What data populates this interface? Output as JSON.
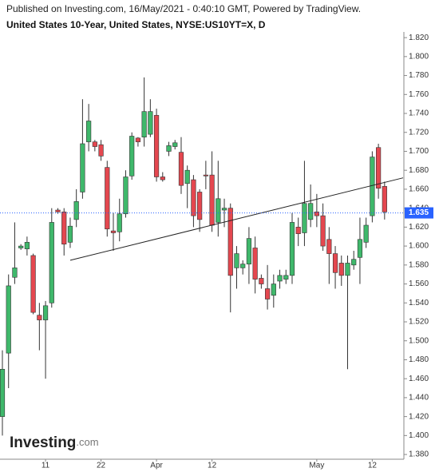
{
  "chart_data": {
    "type": "candlestick",
    "header": "Published on Investing.com, 16/May/2021 - 0:40:10 GMT, Powered by TradingView.",
    "title": "United States 10-Year, United States, NYSE:US10YT=X, D",
    "logo": {
      "name": "Investing",
      "suffix": ".com"
    },
    "categories": [
      null,
      null,
      null,
      null,
      null,
      null,
      null,
      "11",
      null,
      null,
      null,
      null,
      null,
      null,
      null,
      null,
      "22",
      null,
      null,
      null,
      null,
      null,
      null,
      null,
      null,
      "Apr",
      null,
      null,
      null,
      null,
      null,
      null,
      null,
      null,
      "12",
      null,
      null,
      null,
      null,
      null,
      null,
      null,
      null,
      null,
      null,
      null,
      null,
      null,
      null,
      null,
      null,
      "May",
      null,
      null,
      null,
      null,
      null,
      null,
      null,
      null,
      "12",
      null,
      null
    ],
    "open": [
      1.42,
      1.487,
      1.567,
      1.598,
      1.597,
      1.59,
      1.527,
      1.522,
      1.54,
      1.638,
      1.636,
      1.604,
      1.628,
      1.657,
      1.71,
      1.71,
      1.707,
      1.683,
      1.616,
      1.615,
      1.634,
      1.674,
      1.714,
      1.715,
      1.718,
      1.738,
      1.673,
      1.7,
      1.705,
      1.699,
      1.666,
      1.67,
      1.657,
      1.675,
      1.675,
      1.625,
      1.638,
      1.64,
      1.577,
      1.577,
      1.581,
      1.598,
      1.566,
      1.555,
      1.548,
      1.563,
      1.565,
      1.569,
      1.62,
      1.614,
      1.628,
      1.636,
      1.632,
      1.607,
      1.592,
      1.582,
      1.569,
      1.58,
      1.588,
      1.604,
      1.632,
      1.704,
      1.663
    ],
    "high": [
      1.49,
      1.57,
      1.625,
      1.602,
      1.61,
      1.592,
      1.54,
      1.542,
      1.64,
      1.64,
      1.64,
      1.63,
      1.66,
      1.755,
      1.75,
      1.712,
      1.712,
      1.69,
      1.635,
      1.65,
      1.68,
      1.72,
      1.715,
      1.778,
      1.755,
      1.745,
      1.678,
      1.71,
      1.712,
      1.715,
      1.685,
      1.675,
      1.66,
      1.69,
      1.7,
      1.69,
      1.65,
      1.645,
      1.6,
      1.585,
      1.62,
      1.61,
      1.57,
      1.58,
      1.57,
      1.575,
      1.575,
      1.635,
      1.63,
      1.69,
      1.665,
      1.655,
      1.645,
      1.62,
      1.6,
      1.59,
      1.59,
      1.595,
      1.63,
      1.63,
      1.7,
      1.708,
      1.668
    ],
    "low": [
      1.4,
      1.45,
      1.56,
      1.596,
      1.59,
      1.528,
      1.49,
      1.46,
      1.535,
      1.634,
      1.59,
      1.598,
      1.62,
      1.65,
      1.7,
      1.7,
      1.69,
      1.61,
      1.595,
      1.605,
      1.63,
      1.67,
      1.705,
      1.705,
      1.715,
      1.668,
      1.668,
      1.695,
      1.702,
      1.655,
      1.64,
      1.62,
      1.615,
      1.66,
      1.615,
      1.61,
      1.62,
      1.53,
      1.555,
      1.57,
      1.56,
      1.55,
      1.555,
      1.533,
      1.535,
      1.555,
      1.56,
      1.56,
      1.6,
      1.6,
      1.62,
      1.62,
      1.595,
      1.56,
      1.555,
      1.558,
      1.47,
      1.575,
      1.56,
      1.598,
      1.625,
      1.65,
      1.628
    ],
    "close": [
      1.47,
      1.558,
      1.577,
      1.6,
      1.604,
      1.53,
      1.522,
      1.537,
      1.625,
      1.636,
      1.602,
      1.621,
      1.647,
      1.708,
      1.732,
      1.705,
      1.695,
      1.618,
      1.614,
      1.634,
      1.673,
      1.716,
      1.71,
      1.742,
      1.742,
      1.673,
      1.67,
      1.706,
      1.709,
      1.664,
      1.68,
      1.632,
      1.628,
      1.674,
      1.622,
      1.65,
      1.64,
      1.569,
      1.592,
      1.581,
      1.608,
      1.565,
      1.56,
      1.544,
      1.56,
      1.569,
      1.569,
      1.625,
      1.613,
      1.645,
      1.645,
      1.632,
      1.6,
      1.592,
      1.572,
      1.569,
      1.582,
      1.586,
      1.607,
      1.622,
      1.694,
      1.661,
      1.636
    ],
    "up_color": "#3fb86b",
    "down_color": "#e4474f",
    "xlim": [
      0,
      65
    ],
    "ylim": [
      1.375,
      1.826
    ],
    "yticks": [
      {
        "value": 1.38,
        "label": "1.380"
      },
      {
        "value": 1.4,
        "label": "1.400"
      },
      {
        "value": 1.42,
        "label": "1.420"
      },
      {
        "value": 1.44,
        "label": "1.440"
      },
      {
        "value": 1.46,
        "label": "1.460"
      },
      {
        "value": 1.48,
        "label": "1.480"
      },
      {
        "value": 1.5,
        "label": "1.500"
      },
      {
        "value": 1.52,
        "label": "1.520"
      },
      {
        "value": 1.54,
        "label": "1.540"
      },
      {
        "value": 1.56,
        "label": "1.560"
      },
      {
        "value": 1.58,
        "label": "1.580"
      },
      {
        "value": 1.6,
        "label": "1.600"
      },
      {
        "value": 1.62,
        "label": "1.620"
      },
      {
        "value": 1.64,
        "label": "1.640"
      },
      {
        "value": 1.66,
        "label": "1.660"
      },
      {
        "value": 1.68,
        "label": "1.680"
      },
      {
        "value": 1.7,
        "label": "1.700"
      },
      {
        "value": 1.72,
        "label": "1.720"
      },
      {
        "value": 1.74,
        "label": "1.740"
      },
      {
        "value": 1.76,
        "label": "1.760"
      },
      {
        "value": 1.78,
        "label": "1.780"
      },
      {
        "value": 1.8,
        "label": "1.800"
      },
      {
        "value": 1.82,
        "label": "1.820"
      }
    ],
    "trendline": {
      "x": [
        11,
        65
      ],
      "y": [
        1.585,
        1.672
      ],
      "color": "#222222"
    },
    "last_value": {
      "value": 1.635,
      "color": "#2962ff"
    }
  }
}
